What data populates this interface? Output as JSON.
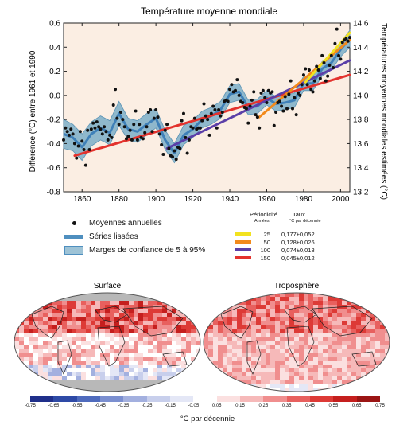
{
  "chart_data": [
    {
      "type": "line",
      "title": "Température moyenne mondiale",
      "ylabel": "Différence (°C) entre 1961 et 1990",
      "y2label": "Températures moyennes mondiales estimées (°C)",
      "xlim": [
        1850,
        2005
      ],
      "ylim": [
        -0.8,
        0.6
      ],
      "y2lim": [
        13.2,
        14.6
      ],
      "xticks": [
        1860,
        1880,
        1900,
        1920,
        1940,
        1960,
        1980,
        2000
      ],
      "yticks": [
        -0.8,
        -0.6,
        -0.4,
        -0.2,
        0.0,
        0.2,
        0.4,
        0.6
      ],
      "ytick_labels": [
        "-0.8",
        "-0.6",
        "-0.4",
        "-0.2",
        "0.0",
        "0.2",
        "0.4",
        "0.6"
      ],
      "y2ticks": [
        13.2,
        13.4,
        13.6,
        13.8,
        14.0,
        14.2,
        14.4,
        14.6
      ],
      "y2tick_labels": [
        "13.2",
        "13.4",
        "13.6",
        "13.8",
        "14.0",
        "14.2",
        "14.4",
        "14.6"
      ],
      "background": "#fbeee3",
      "annual_x": [
        1850,
        1851,
        1852,
        1853,
        1854,
        1855,
        1856,
        1857,
        1858,
        1859,
        1860,
        1861,
        1862,
        1863,
        1864,
        1865,
        1866,
        1867,
        1868,
        1869,
        1870,
        1871,
        1872,
        1873,
        1874,
        1875,
        1876,
        1877,
        1878,
        1879,
        1880,
        1881,
        1882,
        1883,
        1884,
        1885,
        1886,
        1887,
        1888,
        1889,
        1890,
        1891,
        1892,
        1893,
        1894,
        1895,
        1896,
        1897,
        1898,
        1899,
        1900,
        1901,
        1902,
        1903,
        1904,
        1905,
        1906,
        1907,
        1908,
        1909,
        1910,
        1911,
        1912,
        1913,
        1914,
        1915,
        1916,
        1917,
        1918,
        1919,
        1920,
        1921,
        1922,
        1923,
        1924,
        1925,
        1926,
        1927,
        1928,
        1929,
        1930,
        1931,
        1932,
        1933,
        1934,
        1935,
        1936,
        1937,
        1938,
        1939,
        1940,
        1941,
        1942,
        1943,
        1944,
        1945,
        1946,
        1947,
        1948,
        1949,
        1950,
        1951,
        1952,
        1953,
        1954,
        1955,
        1956,
        1957,
        1958,
        1959,
        1960,
        1961,
        1962,
        1963,
        1964,
        1965,
        1966,
        1967,
        1968,
        1969,
        1970,
        1971,
        1972,
        1973,
        1974,
        1975,
        1976,
        1977,
        1978,
        1979,
        1980,
        1981,
        1982,
        1983,
        1984,
        1985,
        1986,
        1987,
        1988,
        1989,
        1990,
        1991,
        1992,
        1993,
        1994,
        1995,
        1996,
        1997,
        1998,
        1999,
        2000,
        2001,
        2002,
        2003,
        2004,
        2005
      ],
      "annual_y": [
        -0.37,
        -0.27,
        -0.3,
        -0.33,
        -0.28,
        -0.32,
        -0.4,
        -0.52,
        -0.42,
        -0.3,
        -0.38,
        -0.45,
        -0.58,
        -0.29,
        -0.45,
        -0.28,
        -0.23,
        -0.27,
        -0.22,
        -0.26,
        -0.28,
        -0.32,
        -0.26,
        -0.3,
        -0.37,
        -0.33,
        -0.35,
        -0.08,
        0.05,
        -0.19,
        -0.24,
        -0.14,
        -0.2,
        -0.26,
        -0.36,
        -0.34,
        -0.29,
        -0.37,
        -0.24,
        -0.13,
        -0.37,
        -0.24,
        -0.35,
        -0.36,
        -0.31,
        -0.26,
        -0.14,
        -0.12,
        -0.3,
        -0.19,
        -0.12,
        -0.18,
        -0.32,
        -0.41,
        -0.49,
        -0.29,
        -0.24,
        -0.44,
        -0.5,
        -0.51,
        -0.46,
        -0.53,
        -0.43,
        -0.44,
        -0.21,
        -0.15,
        -0.35,
        -0.48,
        -0.37,
        -0.26,
        -0.27,
        -0.19,
        -0.28,
        -0.27,
        -0.27,
        -0.21,
        -0.07,
        -0.17,
        -0.2,
        -0.33,
        -0.15,
        -0.09,
        -0.12,
        -0.27,
        -0.12,
        -0.17,
        -0.14,
        -0.05,
        -0.04,
        -0.05,
        0.05,
        0.09,
        0.03,
        0.04,
        0.13,
        0.0,
        -0.05,
        -0.06,
        -0.1,
        -0.11,
        -0.23,
        -0.09,
        -0.04,
        0.03,
        -0.16,
        -0.18,
        -0.27,
        0.02,
        0.04,
        -0.02,
        -0.06,
        0.04,
        0.02,
        0.03,
        -0.25,
        -0.14,
        -0.06,
        -0.05,
        -0.09,
        -0.13,
        -0.01,
        -0.11,
        0.01,
        0.12,
        -0.11,
        -0.02,
        -0.16,
        0.02,
        0.0,
        0.09,
        0.17,
        0.22,
        0.09,
        0.21,
        0.05,
        0.03,
        0.12,
        0.24,
        0.21,
        0.14,
        0.33,
        0.27,
        0.12,
        0.16,
        0.25,
        0.33,
        0.23,
        0.43,
        0.55,
        0.33,
        0.3,
        0.44,
        0.46,
        0.47,
        0.45,
        0.48
      ],
      "smoothed_x": [
        1850,
        1855,
        1860,
        1865,
        1870,
        1875,
        1880,
        1885,
        1890,
        1895,
        1900,
        1905,
        1910,
        1915,
        1920,
        1925,
        1930,
        1935,
        1940,
        1945,
        1950,
        1955,
        1960,
        1965,
        1970,
        1975,
        1980,
        1985,
        1990,
        1995,
        2000,
        2005
      ],
      "smoothed_y": [
        -0.32,
        -0.35,
        -0.43,
        -0.32,
        -0.27,
        -0.31,
        -0.15,
        -0.28,
        -0.3,
        -0.24,
        -0.19,
        -0.37,
        -0.48,
        -0.33,
        -0.28,
        -0.2,
        -0.17,
        -0.12,
        0.01,
        0.03,
        -0.1,
        -0.09,
        -0.02,
        -0.07,
        -0.06,
        -0.04,
        0.1,
        0.1,
        0.22,
        0.27,
        0.38,
        0.47
      ],
      "band_halfwidth": [
        0.12,
        0.11,
        0.11,
        0.1,
        0.1,
        0.1,
        0.1,
        0.09,
        0.09,
        0.09,
        0.08,
        0.08,
        0.08,
        0.08,
        0.07,
        0.07,
        0.07,
        0.07,
        0.07,
        0.07,
        0.06,
        0.06,
        0.06,
        0.06,
        0.06,
        0.06,
        0.06,
        0.06,
        0.06,
        0.06,
        0.06,
        0.07
      ],
      "trends": [
        {
          "period": "25",
          "rate": "0,177±0,052",
          "color": "#f2e21f",
          "x": [
            1981,
            2005
          ],
          "y": [
            0.11,
            0.52
          ]
        },
        {
          "period": "50",
          "rate": "0,128±0,026",
          "color": "#f28a1b",
          "x": [
            1956,
            2005
          ],
          "y": [
            -0.18,
            0.46
          ]
        },
        {
          "period": "100",
          "rate": "0,074±0,018",
          "color": "#5b3fa8",
          "x": [
            1906,
            2005
          ],
          "y": [
            -0.44,
            0.29
          ]
        },
        {
          "period": "150",
          "rate": "0,045±0,012",
          "color": "#e3322d",
          "x": [
            1856,
            2005
          ],
          "y": [
            -0.5,
            0.17
          ]
        }
      ],
      "legend": {
        "annual": "Moyennes annuelles",
        "smoothed": "Séries lissées",
        "band": "Marges de confiance de 5 à 95%"
      },
      "table_headers": {
        "period": "Périodicité",
        "period_unit": "Années",
        "rate": "Taux",
        "rate_unit": "°C par décennie"
      },
      "colors": {
        "points": "#111111",
        "smoothed": "#3f80b8",
        "band": "#8fb8cc",
        "band_edge": "#5b93b5"
      }
    },
    {
      "type": "heatmap",
      "titles": [
        "Surface",
        "Troposphère"
      ],
      "colorbar_ticks": [
        "-0,75",
        "-0,65",
        "-0,55",
        "-0,45",
        "-0,35",
        "-0,25",
        "-0,15",
        "-0,05",
        "0,05",
        "0,15",
        "0,25",
        "0,35",
        "0,45",
        "0,55",
        "0,65",
        "0,75"
      ],
      "colorbar_colors": [
        "#1f2f8a",
        "#2e4aa6",
        "#4f6bbd",
        "#7b8fd0",
        "#a3b0df",
        "#c8cfec",
        "#e4e7f6",
        "#ffffff",
        "#fbe0e0",
        "#f6b9b9",
        "#f08e8e",
        "#e8605e",
        "#dd3a36",
        "#c51f1e",
        "#9b1514"
      ],
      "colorbar_label": "°C par décennie",
      "nodata_color": "#b8b8b8"
    }
  ]
}
